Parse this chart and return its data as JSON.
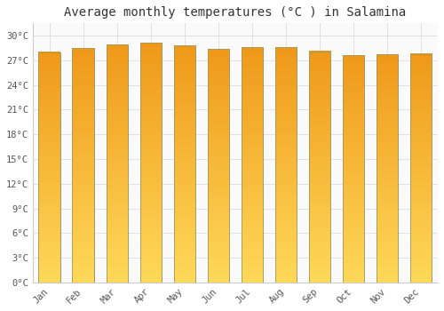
{
  "title": "Average monthly temperatures (°C ) in Salamina",
  "months": [
    "Jan",
    "Feb",
    "Mar",
    "Apr",
    "May",
    "Jun",
    "Jul",
    "Aug",
    "Sep",
    "Oct",
    "Nov",
    "Dec"
  ],
  "values": [
    28.0,
    28.5,
    28.9,
    29.1,
    28.8,
    28.4,
    28.6,
    28.6,
    28.1,
    27.6,
    27.7,
    27.8
  ],
  "bar_color_top": "#F5A623",
  "bar_color_bottom": "#FFD060",
  "bar_edge_color": "#999966",
  "background_color": "#FFFFFF",
  "plot_bg_color": "#FAFAFA",
  "grid_color": "#E0E0E8",
  "yticks": [
    0,
    3,
    6,
    9,
    12,
    15,
    18,
    21,
    24,
    27,
    30
  ],
  "ytick_labels": [
    "0°C",
    "3°C",
    "6°C",
    "9°C",
    "12°C",
    "15°C",
    "18°C",
    "21°C",
    "24°C",
    "27°C",
    "30°C"
  ],
  "ylim": [
    0,
    31.5
  ],
  "title_fontsize": 10,
  "tick_fontsize": 7.5,
  "font_family": "monospace",
  "bar_width": 0.65
}
